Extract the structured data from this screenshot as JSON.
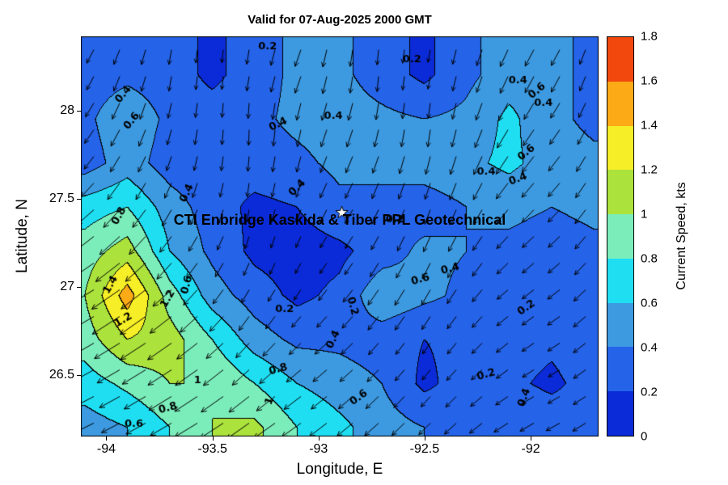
{
  "title": "Valid for 07-Aug-2025 2000 GMT",
  "overlay_text": "CTI Enbridge  Kaskida & Tiber PPL Geotechnical",
  "axes": {
    "xlabel": "Longitude, E",
    "ylabel": "Latitude, N",
    "xlim": [
      -94.12,
      -91.68
    ],
    "ylim": [
      26.15,
      28.42
    ],
    "x_ticks": [
      {
        "label": "-94",
        "value": -94
      },
      {
        "label": "-93.5",
        "value": -93.5
      },
      {
        "label": "-93",
        "value": -93
      },
      {
        "label": "-92.5",
        "value": -92.5
      },
      {
        "label": "-92",
        "value": -92
      }
    ],
    "y_ticks": [
      {
        "label": "26.5",
        "value": 26.5
      },
      {
        "label": "27",
        "value": 27
      },
      {
        "label": "27.5",
        "value": 27.5
      },
      {
        "label": "28",
        "value": 28
      }
    ]
  },
  "colorbar": {
    "label": "Current Speed, kts",
    "min": 0,
    "max": 1.8,
    "ticks": [
      {
        "label": "0",
        "value": 0
      },
      {
        "label": "0.2",
        "value": 0.2
      },
      {
        "label": "0.4",
        "value": 0.4
      },
      {
        "label": "0.6",
        "value": 0.6
      },
      {
        "label": "0.8",
        "value": 0.8
      },
      {
        "label": "1",
        "value": 1
      },
      {
        "label": "1.2",
        "value": 1.2
      },
      {
        "label": "1.4",
        "value": 1.4
      },
      {
        "label": "1.6",
        "value": 1.6
      },
      {
        "label": "1.8",
        "value": 1.8
      }
    ],
    "band_colors": [
      "#0b2bd8",
      "#2563e8",
      "#3d9ae0",
      "#1fdef2",
      "#7bedbb",
      "#abe23c",
      "#f6ee26",
      "#fcab17",
      "#f2480e"
    ]
  },
  "chart_data": {
    "type": "heatmap",
    "title": "Valid for 07-Aug-2025 2000 GMT",
    "xlabel": "Longitude, E",
    "ylabel": "Latitude, N",
    "units": "kts",
    "contour_levels": [
      0.2,
      0.4,
      0.6,
      0.8,
      1,
      1.2,
      1.4,
      1.6
    ],
    "lon": [
      -94.1,
      -93.9,
      -93.7,
      -93.5,
      -93.3,
      -93.1,
      -92.9,
      -92.7,
      -92.5,
      -92.3,
      -92.1,
      -91.9,
      -91.7
    ],
    "lat": [
      28.2,
      27.95,
      27.7,
      27.45,
      27.2,
      26.95,
      26.7,
      26.45,
      26.2
    ],
    "speed_kts": [
      [
        0.3,
        0.35,
        0.3,
        0.15,
        0.3,
        0.45,
        0.45,
        0.3,
        0.15,
        0.35,
        0.5,
        0.5,
        0.3
      ],
      [
        0.35,
        0.55,
        0.35,
        0.3,
        0.35,
        0.45,
        0.5,
        0.45,
        0.4,
        0.45,
        0.65,
        0.45,
        0.35
      ],
      [
        0.3,
        0.5,
        0.3,
        0.25,
        0.3,
        0.35,
        0.45,
        0.45,
        0.5,
        0.55,
        0.65,
        0.5,
        0.45
      ],
      [
        0.7,
        0.8,
        0.5,
        0.3,
        0.15,
        0.2,
        0.35,
        0.35,
        0.3,
        0.4,
        0.45,
        0.4,
        0.45
      ],
      [
        0.9,
        1.1,
        0.6,
        0.35,
        0.15,
        0.1,
        0.15,
        0.3,
        0.45,
        0.4,
        0.35,
        0.3,
        0.35
      ],
      [
        1.0,
        1.5,
        0.9,
        0.5,
        0.3,
        0.15,
        0.25,
        0.55,
        0.45,
        0.35,
        0.25,
        0.3,
        0.4
      ],
      [
        0.9,
        1.2,
        1.1,
        0.8,
        0.5,
        0.35,
        0.35,
        0.3,
        0.2,
        0.25,
        0.3,
        0.25,
        0.35
      ],
      [
        0.7,
        0.85,
        1.0,
        1.0,
        0.8,
        0.6,
        0.5,
        0.4,
        0.15,
        0.3,
        0.25,
        0.15,
        0.3
      ],
      [
        0.5,
        0.6,
        0.8,
        1.0,
        1.05,
        0.8,
        0.65,
        0.5,
        0.4,
        0.35,
        0.4,
        0.35,
        0.3
      ]
    ],
    "arrow_angles_deg": [
      [
        -120,
        -110,
        -100,
        -95,
        -100,
        -110,
        -100,
        -95,
        -100,
        -105,
        -115,
        -120,
        -110
      ],
      [
        -125,
        -115,
        -105,
        -95,
        -90,
        -100,
        -110,
        -100,
        -95,
        -105,
        -120,
        -125,
        -115
      ],
      [
        -130,
        -120,
        -110,
        -100,
        -95,
        -105,
        -115,
        -110,
        -105,
        -110,
        -125,
        -130,
        -120
      ],
      [
        -140,
        -130,
        -120,
        -110,
        -100,
        -110,
        -120,
        -115,
        -110,
        -115,
        -130,
        -135,
        -125
      ],
      [
        -145,
        -140,
        -130,
        -120,
        -110,
        -115,
        -125,
        -120,
        -115,
        -120,
        -135,
        -140,
        -130
      ],
      [
        -150,
        -145,
        -140,
        -130,
        -120,
        -125,
        -130,
        -125,
        -120,
        -125,
        -140,
        -145,
        -135
      ],
      [
        -150,
        -148,
        -145,
        -140,
        -130,
        -135,
        -138,
        -130,
        -125,
        -130,
        -142,
        -148,
        -140
      ],
      [
        -152,
        -150,
        -148,
        -145,
        -140,
        -142,
        -140,
        -135,
        -130,
        -135,
        -145,
        -150,
        -145
      ],
      [
        -155,
        -152,
        -150,
        -148,
        -145,
        -145,
        -142,
        -138,
        -135,
        -138,
        -148,
        -152,
        -148
      ]
    ],
    "star_marker": {
      "lon": -92.89,
      "lat": 27.42
    },
    "contour_labels": [
      {
        "v": "0.2",
        "lon": -93.24,
        "lat": 28.36,
        "rot": 0
      },
      {
        "v": "0.2",
        "lon": -92.56,
        "lat": 28.29,
        "rot": 0
      },
      {
        "v": "0.4",
        "lon": -92.06,
        "lat": 28.17,
        "rot": 0
      },
      {
        "v": "0.6",
        "lon": -91.97,
        "lat": 28.11,
        "rot": -40
      },
      {
        "v": "0.4",
        "lon": -91.94,
        "lat": 28.04,
        "rot": 0
      },
      {
        "v": "0.4",
        "lon": -93.92,
        "lat": 28.09,
        "rot": -50
      },
      {
        "v": "0.6",
        "lon": -93.88,
        "lat": 27.94,
        "rot": -50
      },
      {
        "v": "0.4",
        "lon": -93.19,
        "lat": 27.92,
        "rot": -25
      },
      {
        "v": "0.4",
        "lon": -92.93,
        "lat": 27.97,
        "rot": 0
      },
      {
        "v": "0.4",
        "lon": -92.21,
        "lat": 27.65,
        "rot": 0
      },
      {
        "v": "0.6",
        "lon": -92.02,
        "lat": 27.76,
        "rot": -40
      },
      {
        "v": "0.4",
        "lon": -92.06,
        "lat": 27.61,
        "rot": -20
      },
      {
        "v": "0.2",
        "lon": -92.64,
        "lat": 27.38,
        "rot": 0
      },
      {
        "v": "0.4",
        "lon": -93.1,
        "lat": 27.56,
        "rot": -45
      },
      {
        "v": "0.8",
        "lon": -93.94,
        "lat": 27.4,
        "rot": -60
      },
      {
        "v": "0.4",
        "lon": -93.62,
        "lat": 27.53,
        "rot": -65
      },
      {
        "v": "1.4",
        "lon": -93.98,
        "lat": 27.01,
        "rot": -60
      },
      {
        "v": "0.6",
        "lon": -93.62,
        "lat": 27.01,
        "rot": -75
      },
      {
        "v": "1.2",
        "lon": -93.71,
        "lat": 26.93,
        "rot": -60
      },
      {
        "v": "1.2",
        "lon": -93.92,
        "lat": 26.81,
        "rot": -30
      },
      {
        "v": "0.2",
        "lon": -93.16,
        "lat": 26.87,
        "rot": 0
      },
      {
        "v": "0.2",
        "lon": -92.84,
        "lat": 26.89,
        "rot": 75
      },
      {
        "v": "0.6",
        "lon": -92.52,
        "lat": 27.04,
        "rot": -15
      },
      {
        "v": "0.4",
        "lon": -92.38,
        "lat": 27.1,
        "rot": -15
      },
      {
        "v": "0.2",
        "lon": -92.02,
        "lat": 26.88,
        "rot": -35
      },
      {
        "v": "0.4",
        "lon": -92.93,
        "lat": 26.7,
        "rot": -65
      },
      {
        "v": "0.8",
        "lon": -93.19,
        "lat": 26.53,
        "rot": -15
      },
      {
        "v": "1",
        "lon": -93.57,
        "lat": 26.47,
        "rot": 0
      },
      {
        "v": "1",
        "lon": -93.23,
        "lat": 26.35,
        "rot": -70
      },
      {
        "v": "0.6",
        "lon": -92.81,
        "lat": 26.37,
        "rot": -35
      },
      {
        "v": "0.2",
        "lon": -92.21,
        "lat": 26.5,
        "rot": -15
      },
      {
        "v": "0.4",
        "lon": -92.03,
        "lat": 26.37,
        "rot": -70
      },
      {
        "v": "0.8",
        "lon": -93.71,
        "lat": 26.31,
        "rot": -15
      },
      {
        "v": "0.6",
        "lon": -93.87,
        "lat": 26.22,
        "rot": 0
      }
    ]
  }
}
